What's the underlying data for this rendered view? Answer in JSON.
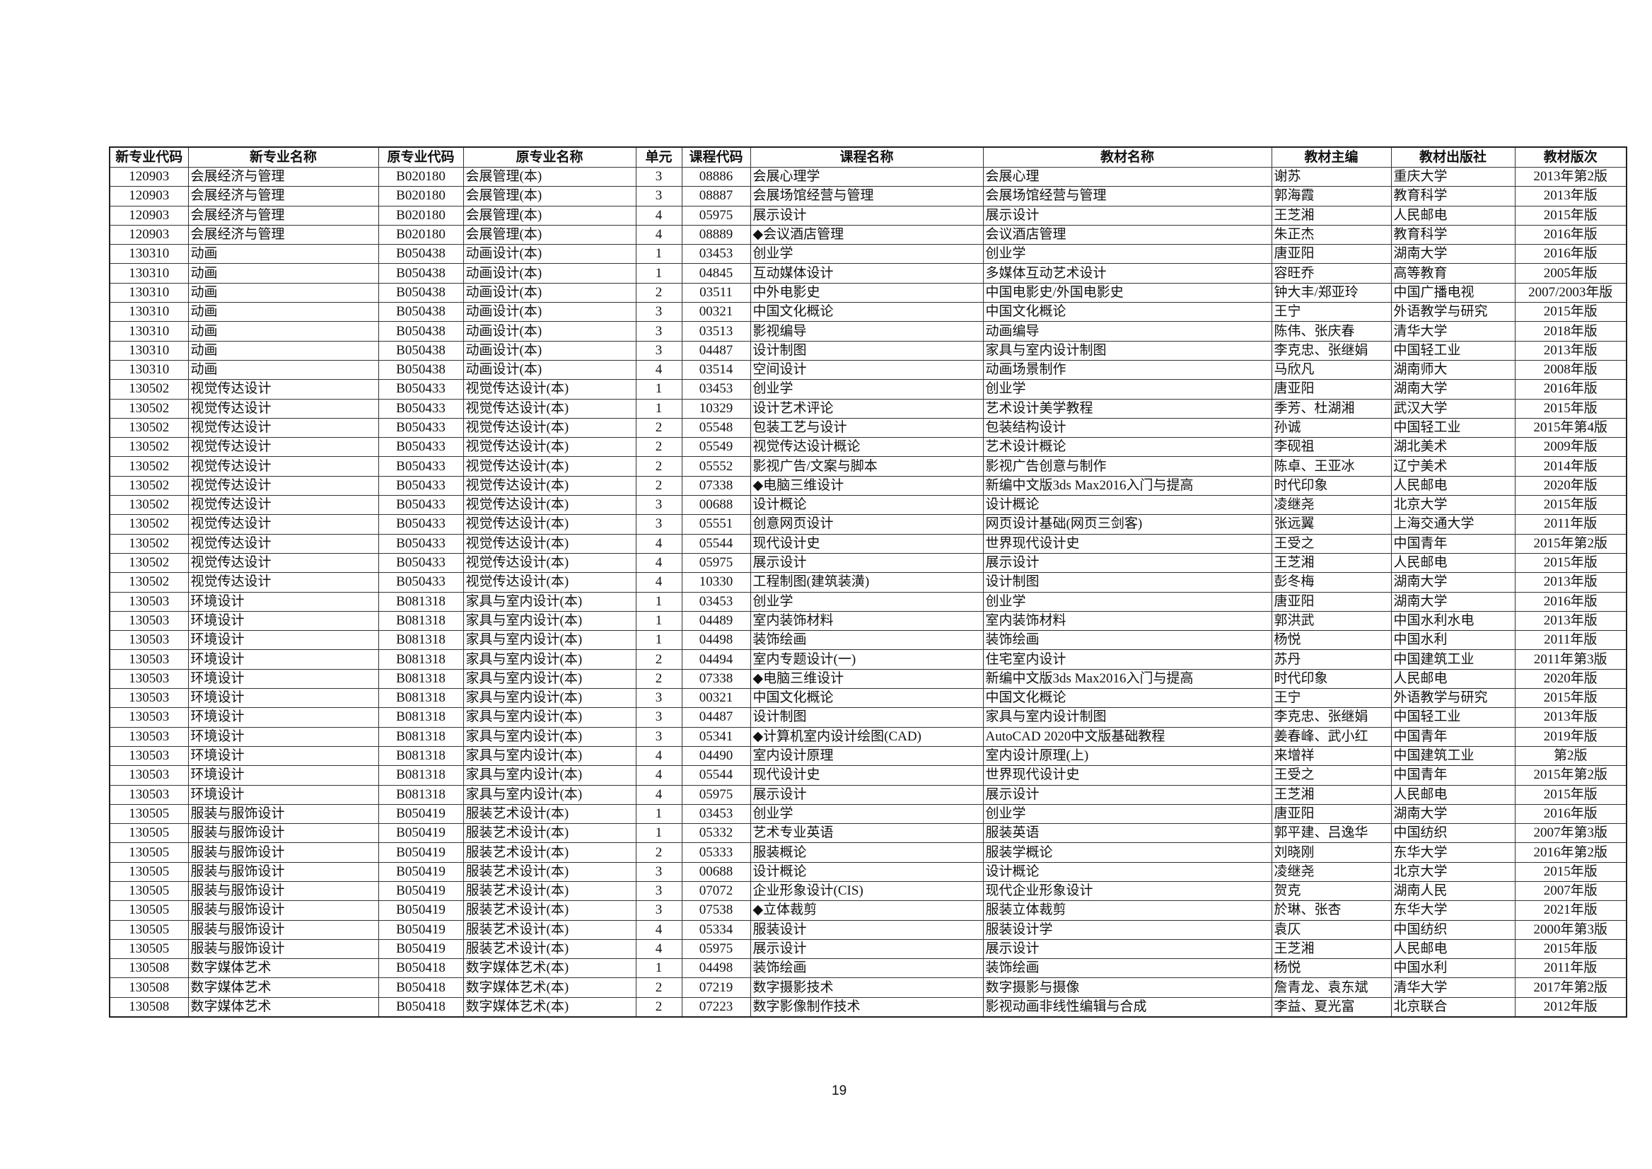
{
  "table": {
    "headers": [
      "新专业代码",
      "新专业名称",
      "原专业代码",
      "原专业名称",
      "单元",
      "课程代码",
      "课程名称",
      "教材名称",
      "教材主编",
      "教材出版社",
      "教材版次"
    ],
    "rows": [
      [
        "120903",
        "会展经济与管理",
        "B020180",
        "会展管理(本)",
        "3",
        "08886",
        "会展心理学",
        "会展心理",
        "谢苏",
        "重庆大学",
        "2013年第2版"
      ],
      [
        "120903",
        "会展经济与管理",
        "B020180",
        "会展管理(本)",
        "3",
        "08887",
        "会展场馆经营与管理",
        "会展场馆经营与管理",
        "郭海霞",
        "教育科学",
        "2013年版"
      ],
      [
        "120903",
        "会展经济与管理",
        "B020180",
        "会展管理(本)",
        "4",
        "05975",
        "展示设计",
        "展示设计",
        "王芝湘",
        "人民邮电",
        "2015年版"
      ],
      [
        "120903",
        "会展经济与管理",
        "B020180",
        "会展管理(本)",
        "4",
        "08889",
        "◆会议酒店管理",
        "会议酒店管理",
        "朱正杰",
        "教育科学",
        "2016年版"
      ],
      [
        "130310",
        "动画",
        "B050438",
        "动画设计(本)",
        "1",
        "03453",
        "创业学",
        "创业学",
        "唐亚阳",
        "湖南大学",
        "2016年版"
      ],
      [
        "130310",
        "动画",
        "B050438",
        "动画设计(本)",
        "1",
        "04845",
        "互动媒体设计",
        "多媒体互动艺术设计",
        "容旺乔",
        "高等教育",
        "2005年版"
      ],
      [
        "130310",
        "动画",
        "B050438",
        "动画设计(本)",
        "2",
        "03511",
        "中外电影史",
        "中国电影史/外国电影史",
        "钟大丰/郑亚玲",
        "中国广播电视",
        "2007/2003年版"
      ],
      [
        "130310",
        "动画",
        "B050438",
        "动画设计(本)",
        "3",
        "00321",
        "中国文化概论",
        "中国文化概论",
        "王宁",
        "外语教学与研究",
        "2015年版"
      ],
      [
        "130310",
        "动画",
        "B050438",
        "动画设计(本)",
        "3",
        "03513",
        "影视编导",
        "动画编导",
        "陈伟、张庆春",
        "清华大学",
        "2018年版"
      ],
      [
        "130310",
        "动画",
        "B050438",
        "动画设计(本)",
        "3",
        "04487",
        "设计制图",
        "家具与室内设计制图",
        "李克忠、张继娟",
        "中国轻工业",
        "2013年版"
      ],
      [
        "130310",
        "动画",
        "B050438",
        "动画设计(本)",
        "4",
        "03514",
        "空间设计",
        "动画场景制作",
        "马欣凡",
        "湖南师大",
        "2008年版"
      ],
      [
        "130502",
        "视觉传达设计",
        "B050433",
        "视觉传达设计(本)",
        "1",
        "03453",
        "创业学",
        "创业学",
        "唐亚阳",
        "湖南大学",
        "2016年版"
      ],
      [
        "130502",
        "视觉传达设计",
        "B050433",
        "视觉传达设计(本)",
        "1",
        "10329",
        "设计艺术评论",
        "艺术设计美学教程",
        "季芳、杜湖湘",
        "武汉大学",
        "2015年版"
      ],
      [
        "130502",
        "视觉传达设计",
        "B050433",
        "视觉传达设计(本)",
        "2",
        "05548",
        "包装工艺与设计",
        "包装结构设计",
        "孙诚",
        "中国轻工业",
        "2015年第4版"
      ],
      [
        "130502",
        "视觉传达设计",
        "B050433",
        "视觉传达设计(本)",
        "2",
        "05549",
        "视觉传达设计概论",
        "艺术设计概论",
        "李砚祖",
        "湖北美术",
        "2009年版"
      ],
      [
        "130502",
        "视觉传达设计",
        "B050433",
        "视觉传达设计(本)",
        "2",
        "05552",
        "影视广告/文案与脚本",
        "影视广告创意与制作",
        "陈卓、王亚冰",
        "辽宁美术",
        "2014年版"
      ],
      [
        "130502",
        "视觉传达设计",
        "B050433",
        "视觉传达设计(本)",
        "2",
        "07338",
        "◆电脑三维设计",
        "新编中文版3ds Max2016入门与提高",
        "时代印象",
        "人民邮电",
        "2020年版"
      ],
      [
        "130502",
        "视觉传达设计",
        "B050433",
        "视觉传达设计(本)",
        "3",
        "00688",
        "设计概论",
        "设计概论",
        "凌继尧",
        "北京大学",
        "2015年版"
      ],
      [
        "130502",
        "视觉传达设计",
        "B050433",
        "视觉传达设计(本)",
        "3",
        "05551",
        "创意网页设计",
        "网页设计基础(网页三剑客)",
        "张远翼",
        "上海交通大学",
        "2011年版"
      ],
      [
        "130502",
        "视觉传达设计",
        "B050433",
        "视觉传达设计(本)",
        "4",
        "05544",
        "现代设计史",
        "世界现代设计史",
        "王受之",
        "中国青年",
        "2015年第2版"
      ],
      [
        "130502",
        "视觉传达设计",
        "B050433",
        "视觉传达设计(本)",
        "4",
        "05975",
        "展示设计",
        "展示设计",
        "王芝湘",
        "人民邮电",
        "2015年版"
      ],
      [
        "130502",
        "视觉传达设计",
        "B050433",
        "视觉传达设计(本)",
        "4",
        "10330",
        "工程制图(建筑装潢)",
        "设计制图",
        "彭冬梅",
        "湖南大学",
        "2013年版"
      ],
      [
        "130503",
        "环境设计",
        "B081318",
        "家具与室内设计(本)",
        "1",
        "03453",
        "创业学",
        "创业学",
        "唐亚阳",
        "湖南大学",
        "2016年版"
      ],
      [
        "130503",
        "环境设计",
        "B081318",
        "家具与室内设计(本)",
        "1",
        "04489",
        "室内装饰材料",
        "室内装饰材料",
        "郭洪武",
        "中国水利水电",
        "2013年版"
      ],
      [
        "130503",
        "环境设计",
        "B081318",
        "家具与室内设计(本)",
        "1",
        "04498",
        "装饰绘画",
        "装饰绘画",
        "杨悦",
        "中国水利",
        "2011年版"
      ],
      [
        "130503",
        "环境设计",
        "B081318",
        "家具与室内设计(本)",
        "2",
        "04494",
        "室内专题设计(一)",
        "住宅室内设计",
        "苏丹",
        "中国建筑工业",
        "2011年第3版"
      ],
      [
        "130503",
        "环境设计",
        "B081318",
        "家具与室内设计(本)",
        "2",
        "07338",
        "◆电脑三维设计",
        "新编中文版3ds Max2016入门与提高",
        "时代印象",
        "人民邮电",
        "2020年版"
      ],
      [
        "130503",
        "环境设计",
        "B081318",
        "家具与室内设计(本)",
        "3",
        "00321",
        "中国文化概论",
        "中国文化概论",
        "王宁",
        "外语教学与研究",
        "2015年版"
      ],
      [
        "130503",
        "环境设计",
        "B081318",
        "家具与室内设计(本)",
        "3",
        "04487",
        "设计制图",
        "家具与室内设计制图",
        "李克忠、张继娟",
        "中国轻工业",
        "2013年版"
      ],
      [
        "130503",
        "环境设计",
        "B081318",
        "家具与室内设计(本)",
        "3",
        "05341",
        "◆计算机室内设计绘图(CAD)",
        "AutoCAD 2020中文版基础教程",
        "姜春峰、武小红",
        "中国青年",
        "2019年版"
      ],
      [
        "130503",
        "环境设计",
        "B081318",
        "家具与室内设计(本)",
        "4",
        "04490",
        "室内设计原理",
        "室内设计原理(上)",
        "来增祥",
        "中国建筑工业",
        "第2版"
      ],
      [
        "130503",
        "环境设计",
        "B081318",
        "家具与室内设计(本)",
        "4",
        "05544",
        "现代设计史",
        "世界现代设计史",
        "王受之",
        "中国青年",
        "2015年第2版"
      ],
      [
        "130503",
        "环境设计",
        "B081318",
        "家具与室内设计(本)",
        "4",
        "05975",
        "展示设计",
        "展示设计",
        "王芝湘",
        "人民邮电",
        "2015年版"
      ],
      [
        "130505",
        "服装与服饰设计",
        "B050419",
        "服装艺术设计(本)",
        "1",
        "03453",
        "创业学",
        "创业学",
        "唐亚阳",
        "湖南大学",
        "2016年版"
      ],
      [
        "130505",
        "服装与服饰设计",
        "B050419",
        "服装艺术设计(本)",
        "1",
        "05332",
        "艺术专业英语",
        "服装英语",
        "郭平建、吕逸华",
        "中国纺织",
        "2007年第3版"
      ],
      [
        "130505",
        "服装与服饰设计",
        "B050419",
        "服装艺术设计(本)",
        "2",
        "05333",
        "服装概论",
        "服装学概论",
        "刘晓刚",
        "东华大学",
        "2016年第2版"
      ],
      [
        "130505",
        "服装与服饰设计",
        "B050419",
        "服装艺术设计(本)",
        "3",
        "00688",
        "设计概论",
        "设计概论",
        "凌继尧",
        "北京大学",
        "2015年版"
      ],
      [
        "130505",
        "服装与服饰设计",
        "B050419",
        "服装艺术设计(本)",
        "3",
        "07072",
        "企业形象设计(CIS)",
        "现代企业形象设计",
        "贺克",
        "湖南人民",
        "2007年版"
      ],
      [
        "130505",
        "服装与服饰设计",
        "B050419",
        "服装艺术设计(本)",
        "3",
        "07538",
        "◆立体裁剪",
        "服装立体裁剪",
        "於琳、张杏",
        "东华大学",
        "2021年版"
      ],
      [
        "130505",
        "服装与服饰设计",
        "B050419",
        "服装艺术设计(本)",
        "4",
        "05334",
        "服装设计",
        "服装设计学",
        "袁仄",
        "中国纺织",
        "2000年第3版"
      ],
      [
        "130505",
        "服装与服饰设计",
        "B050419",
        "服装艺术设计(本)",
        "4",
        "05975",
        "展示设计",
        "展示设计",
        "王芝湘",
        "人民邮电",
        "2015年版"
      ],
      [
        "130508",
        "数字媒体艺术",
        "B050418",
        "数字媒体艺术(本)",
        "1",
        "04498",
        "装饰绘画",
        "装饰绘画",
        "杨悦",
        "中国水利",
        "2011年版"
      ],
      [
        "130508",
        "数字媒体艺术",
        "B050418",
        "数字媒体艺术(本)",
        "2",
        "07219",
        "数字摄影技术",
        "数字摄影与摄像",
        "詹青龙、袁东斌",
        "清华大学",
        "2017年第2版"
      ],
      [
        "130508",
        "数字媒体艺术",
        "B050418",
        "数字媒体艺术(本)",
        "2",
        "07223",
        "数字影像制作技术",
        "影视动画非线性编辑与合成",
        "李益、夏光富",
        "北京联合",
        "2012年版"
      ]
    ]
  },
  "page_number": "19"
}
